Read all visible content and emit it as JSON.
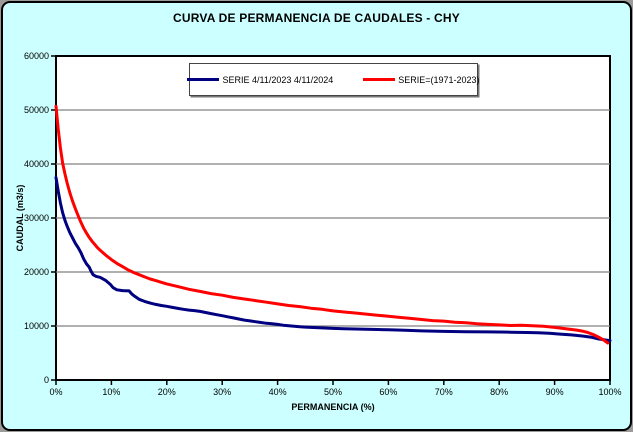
{
  "title": "CURVA DE PERMANENCIA DE CAUDALES - CHY",
  "colors": {
    "canvas_background": "#CCFFFF",
    "plot_background": "#FFFFFF",
    "gridline": "#808080",
    "axis": "#000000",
    "series_blue": "#000080",
    "series_red": "#FF0000"
  },
  "chart_data": {
    "type": "line",
    "title": "CURVA DE PERMANENCIA DE CAUDALES - CHY",
    "xlabel": "PERMANENCIA (%)",
    "ylabel": "CAUDAL (m3/s)",
    "xlim": [
      0,
      100
    ],
    "ylim": [
      0,
      60000
    ],
    "grid": "horizontal",
    "legend_position": "top-center-inside",
    "x_ticks": [
      {
        "value": 0,
        "label": "0%"
      },
      {
        "value": 10,
        "label": "10%"
      },
      {
        "value": 20,
        "label": "20%"
      },
      {
        "value": 30,
        "label": "30%"
      },
      {
        "value": 40,
        "label": "40%"
      },
      {
        "value": 50,
        "label": "50%"
      },
      {
        "value": 60,
        "label": "60%"
      },
      {
        "value": 70,
        "label": "70%"
      },
      {
        "value": 80,
        "label": "80%"
      },
      {
        "value": 90,
        "label": "90%"
      },
      {
        "value": 100,
        "label": "100%"
      }
    ],
    "y_ticks": [
      {
        "value": 0,
        "label": "0"
      },
      {
        "value": 10000,
        "label": "10000"
      },
      {
        "value": 20000,
        "label": "20000"
      },
      {
        "value": 30000,
        "label": "30000"
      },
      {
        "value": 40000,
        "label": "40000"
      },
      {
        "value": 50000,
        "label": "50000"
      },
      {
        "value": 60000,
        "label": "60000"
      }
    ],
    "series": [
      {
        "name": "SERIE 4/11/2023 4/11/2024",
        "color": "#000080",
        "points": [
          [
            0,
            37500
          ],
          [
            0.4,
            35000
          ],
          [
            0.8,
            32800
          ],
          [
            1.2,
            31000
          ],
          [
            1.6,
            29600
          ],
          [
            2,
            28500
          ],
          [
            2.5,
            27300
          ],
          [
            3,
            26300
          ],
          [
            3.5,
            25300
          ],
          [
            4,
            24500
          ],
          [
            4.5,
            23600
          ],
          [
            5,
            22400
          ],
          [
            5.5,
            21500
          ],
          [
            6,
            20900
          ],
          [
            6.3,
            20200
          ],
          [
            6.7,
            19500
          ],
          [
            7.2,
            19200
          ],
          [
            8,
            19000
          ],
          [
            9,
            18400
          ],
          [
            9.8,
            17700
          ],
          [
            10.3,
            17100
          ],
          [
            11,
            16700
          ],
          [
            12,
            16550
          ],
          [
            13.2,
            16500
          ],
          [
            13.7,
            15900
          ],
          [
            14.2,
            15500
          ],
          [
            15,
            14950
          ],
          [
            16,
            14550
          ],
          [
            17,
            14250
          ],
          [
            18,
            14000
          ],
          [
            19,
            13800
          ],
          [
            20,
            13650
          ],
          [
            21,
            13450
          ],
          [
            22,
            13250
          ],
          [
            23,
            13100
          ],
          [
            24,
            12950
          ],
          [
            25,
            12850
          ],
          [
            26,
            12700
          ],
          [
            27,
            12500
          ],
          [
            28,
            12300
          ],
          [
            29,
            12100
          ],
          [
            30,
            11900
          ],
          [
            31,
            11700
          ],
          [
            32,
            11500
          ],
          [
            33,
            11300
          ],
          [
            34,
            11100
          ],
          [
            35,
            10950
          ],
          [
            36,
            10800
          ],
          [
            37,
            10650
          ],
          [
            38,
            10500
          ],
          [
            39,
            10400
          ],
          [
            40,
            10300
          ],
          [
            41,
            10150
          ],
          [
            42,
            10050
          ],
          [
            43,
            9950
          ],
          [
            44,
            9850
          ],
          [
            45,
            9800
          ],
          [
            46,
            9750
          ],
          [
            48,
            9650
          ],
          [
            50,
            9550
          ],
          [
            52,
            9500
          ],
          [
            54,
            9450
          ],
          [
            56,
            9400
          ],
          [
            58,
            9350
          ],
          [
            60,
            9300
          ],
          [
            63,
            9200
          ],
          [
            66,
            9100
          ],
          [
            70,
            9000
          ],
          [
            74,
            8950
          ],
          [
            78,
            8900
          ],
          [
            82,
            8850
          ],
          [
            85,
            8800
          ],
          [
            87,
            8750
          ],
          [
            89,
            8650
          ],
          [
            91,
            8500
          ],
          [
            93,
            8350
          ],
          [
            95,
            8150
          ],
          [
            96.5,
            7950
          ],
          [
            98,
            7600
          ],
          [
            99,
            7450
          ],
          [
            100,
            7300
          ]
        ]
      },
      {
        "name": "SERIE=(1971-2023)",
        "color": "#FF0000",
        "points": [
          [
            0,
            50700
          ],
          [
            0.4,
            46500
          ],
          [
            0.8,
            43000
          ],
          [
            1.2,
            40200
          ],
          [
            1.6,
            38200
          ],
          [
            2,
            36500
          ],
          [
            2.5,
            34700
          ],
          [
            3,
            33100
          ],
          [
            3.5,
            31700
          ],
          [
            4,
            30400
          ],
          [
            4.5,
            29200
          ],
          [
            5,
            28100
          ],
          [
            5.5,
            27200
          ],
          [
            6,
            26400
          ],
          [
            6.5,
            25700
          ],
          [
            7,
            25100
          ],
          [
            7.5,
            24500
          ],
          [
            8,
            24000
          ],
          [
            9,
            23100
          ],
          [
            10,
            22300
          ],
          [
            11,
            21600
          ],
          [
            12,
            21000
          ],
          [
            13,
            20400
          ],
          [
            14,
            19900
          ],
          [
            15,
            19500
          ],
          [
            16,
            19100
          ],
          [
            17,
            18700
          ],
          [
            18,
            18400
          ],
          [
            19,
            18100
          ],
          [
            20,
            17800
          ],
          [
            22,
            17300
          ],
          [
            24,
            16800
          ],
          [
            26,
            16400
          ],
          [
            28,
            16000
          ],
          [
            30,
            15700
          ],
          [
            32,
            15300
          ],
          [
            34,
            15000
          ],
          [
            36,
            14700
          ],
          [
            38,
            14400
          ],
          [
            40,
            14100
          ],
          [
            42,
            13800
          ],
          [
            44,
            13600
          ],
          [
            46,
            13300
          ],
          [
            48,
            13100
          ],
          [
            50,
            12800
          ],
          [
            52,
            12600
          ],
          [
            54,
            12400
          ],
          [
            56,
            12200
          ],
          [
            58,
            12000
          ],
          [
            60,
            11800
          ],
          [
            62,
            11600
          ],
          [
            64,
            11400
          ],
          [
            66,
            11200
          ],
          [
            68,
            11000
          ],
          [
            70,
            10900
          ],
          [
            72,
            10700
          ],
          [
            74,
            10600
          ],
          [
            76,
            10400
          ],
          [
            78,
            10300
          ],
          [
            80,
            10200
          ],
          [
            82,
            10100
          ],
          [
            84,
            10150
          ],
          [
            86,
            10050
          ],
          [
            88,
            9950
          ],
          [
            90,
            9750
          ],
          [
            92,
            9500
          ],
          [
            94,
            9250
          ],
          [
            95,
            9050
          ],
          [
            96,
            8800
          ],
          [
            97,
            8400
          ],
          [
            98,
            7900
          ],
          [
            99,
            7300
          ],
          [
            99.6,
            6850
          ]
        ]
      }
    ]
  }
}
